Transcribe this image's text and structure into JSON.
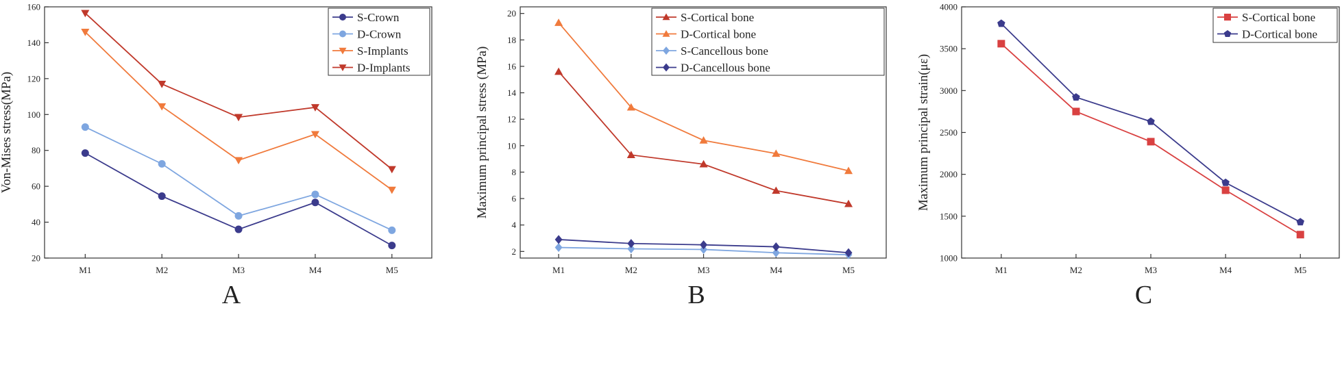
{
  "chart_data": [
    {
      "type": "line",
      "panel_letter": "A",
      "xlabel": "",
      "ylabel": "Von-Mises stress(MPa)",
      "categories": [
        "M1",
        "M2",
        "M3",
        "M4",
        "M5"
      ],
      "ylim": [
        20,
        160
      ],
      "yticks": [
        20,
        40,
        60,
        80,
        100,
        120,
        140,
        160
      ],
      "legend_position": "top-right",
      "series": [
        {
          "name": "S-Crown",
          "values": [
            78.5,
            54.5,
            36.0,
            51.0,
            27.0
          ],
          "color": "#3b3b8c",
          "marker": "circle"
        },
        {
          "name": "D-Crown",
          "values": [
            93.0,
            72.5,
            43.5,
            55.5,
            35.5
          ],
          "color": "#7ea6e0",
          "marker": "circle"
        },
        {
          "name": "S-Implants",
          "values": [
            146.0,
            104.5,
            74.5,
            89.0,
            58.0
          ],
          "color": "#f07a3c",
          "marker": "triangle-down"
        },
        {
          "name": "D-Implants",
          "values": [
            156.5,
            117.0,
            98.5,
            104.0,
            69.5
          ],
          "color": "#c0392b",
          "marker": "triangle-down"
        }
      ]
    },
    {
      "type": "line",
      "panel_letter": "B",
      "xlabel": "",
      "ylabel": "Maximum principal stress (MPa)",
      "categories": [
        "M1",
        "M2",
        "M3",
        "M4",
        "M5"
      ],
      "ylim": [
        1.5,
        20.5
      ],
      "yticks": [
        2,
        4,
        6,
        8,
        10,
        12,
        14,
        16,
        18,
        20
      ],
      "legend_position": "top-right",
      "series": [
        {
          "name": "S-Cortical bone",
          "values": [
            15.6,
            9.3,
            8.6,
            6.6,
            5.6
          ],
          "color": "#c0392b",
          "marker": "triangle-up"
        },
        {
          "name": "D-Cortical bone",
          "values": [
            19.3,
            12.9,
            10.4,
            9.4,
            8.1
          ],
          "color": "#f07a3c",
          "marker": "triangle-up"
        },
        {
          "name": "S-Cancellous bone",
          "values": [
            2.3,
            2.2,
            2.15,
            1.9,
            1.75
          ],
          "color": "#7ea6e0",
          "marker": "diamond"
        },
        {
          "name": "D-Cancellous bone",
          "values": [
            2.9,
            2.6,
            2.5,
            2.35,
            1.9
          ],
          "color": "#3b3b8c",
          "marker": "diamond"
        }
      ]
    },
    {
      "type": "line",
      "panel_letter": "C",
      "xlabel": "",
      "ylabel": "Maximum principal strain(με)",
      "categories": [
        "M1",
        "M2",
        "M3",
        "M4",
        "M5"
      ],
      "ylim": [
        1000,
        4000
      ],
      "yticks": [
        1000,
        1500,
        2000,
        2500,
        3000,
        3500,
        4000
      ],
      "legend_position": "top-right",
      "series": [
        {
          "name": "S-Cortical bone",
          "values": [
            3560,
            2750,
            2390,
            1810,
            1280
          ],
          "color": "#d94141",
          "marker": "square"
        },
        {
          "name": "D-Cortical bone",
          "values": [
            3800,
            2920,
            2630,
            1900,
            1430
          ],
          "color": "#3b3b8c",
          "marker": "pentagon"
        }
      ]
    }
  ]
}
